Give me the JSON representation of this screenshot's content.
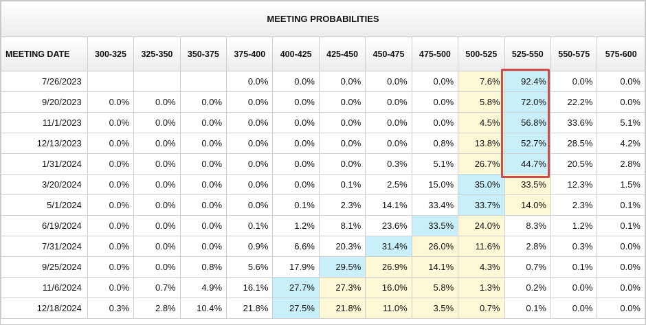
{
  "title": "MEETING PROBABILITIES",
  "highlight_color": "#cc4b4b",
  "cell_colors": {
    "yellow": "#fdf8d6",
    "blue": "#c9f0fa"
  },
  "chart_data": {
    "type": "table",
    "title": "MEETING PROBABILITIES",
    "columns": [
      "MEETING DATE",
      "300-325",
      "325-350",
      "350-375",
      "375-400",
      "400-425",
      "425-450",
      "450-475",
      "475-500",
      "500-525",
      "525-550",
      "550-575",
      "575-600"
    ],
    "rows": [
      {
        "date": "7/26/2023",
        "values": [
          "",
          "",
          "",
          "0.0%",
          "0.0%",
          "0.0%",
          "0.0%",
          "0.0%",
          "7.6%",
          "92.4%",
          "0.0%",
          "0.0%"
        ],
        "colors": [
          "",
          "",
          "",
          "",
          "",
          "",
          "",
          "",
          "yellow",
          "blue",
          "",
          ""
        ]
      },
      {
        "date": "9/20/2023",
        "values": [
          "0.0%",
          "0.0%",
          "0.0%",
          "0.0%",
          "0.0%",
          "0.0%",
          "0.0%",
          "0.0%",
          "5.8%",
          "72.0%",
          "22.2%",
          "0.0%"
        ],
        "colors": [
          "",
          "",
          "",
          "",
          "",
          "",
          "",
          "",
          "yellow",
          "blue",
          "",
          ""
        ]
      },
      {
        "date": "11/1/2023",
        "values": [
          "0.0%",
          "0.0%",
          "0.0%",
          "0.0%",
          "0.0%",
          "0.0%",
          "0.0%",
          "0.0%",
          "4.5%",
          "56.8%",
          "33.6%",
          "5.1%"
        ],
        "colors": [
          "",
          "",
          "",
          "",
          "",
          "",
          "",
          "",
          "yellow",
          "blue",
          "",
          ""
        ]
      },
      {
        "date": "12/13/2023",
        "values": [
          "0.0%",
          "0.0%",
          "0.0%",
          "0.0%",
          "0.0%",
          "0.0%",
          "0.0%",
          "0.8%",
          "13.8%",
          "52.7%",
          "28.5%",
          "4.2%"
        ],
        "colors": [
          "",
          "",
          "",
          "",
          "",
          "",
          "",
          "",
          "yellow",
          "blue",
          "",
          ""
        ]
      },
      {
        "date": "1/31/2024",
        "values": [
          "0.0%",
          "0.0%",
          "0.0%",
          "0.0%",
          "0.0%",
          "0.0%",
          "0.3%",
          "5.1%",
          "26.7%",
          "44.7%",
          "20.5%",
          "2.8%"
        ],
        "colors": [
          "",
          "",
          "",
          "",
          "",
          "",
          "",
          "",
          "yellow",
          "blue",
          "",
          ""
        ]
      },
      {
        "date": "3/20/2024",
        "values": [
          "0.0%",
          "0.0%",
          "0.0%",
          "0.0%",
          "0.0%",
          "0.1%",
          "2.5%",
          "15.0%",
          "35.0%",
          "33.5%",
          "12.3%",
          "1.5%"
        ],
        "colors": [
          "",
          "",
          "",
          "",
          "",
          "",
          "",
          "",
          "blue",
          "yellow",
          "",
          ""
        ]
      },
      {
        "date": "5/1/2024",
        "values": [
          "0.0%",
          "0.0%",
          "0.0%",
          "0.0%",
          "0.1%",
          "2.3%",
          "14.1%",
          "33.4%",
          "33.7%",
          "14.0%",
          "2.3%",
          "0.1%"
        ],
        "colors": [
          "",
          "",
          "",
          "",
          "",
          "",
          "",
          "",
          "blue",
          "yellow",
          "",
          ""
        ]
      },
      {
        "date": "6/19/2024",
        "values": [
          "0.0%",
          "0.0%",
          "0.0%",
          "0.1%",
          "1.2%",
          "8.1%",
          "23.6%",
          "33.5%",
          "24.0%",
          "8.3%",
          "1.2%",
          "0.1%"
        ],
        "colors": [
          "",
          "",
          "",
          "",
          "",
          "",
          "",
          "blue",
          "yellow",
          "",
          "",
          ""
        ]
      },
      {
        "date": "7/31/2024",
        "values": [
          "0.0%",
          "0.0%",
          "0.0%",
          "0.9%",
          "6.6%",
          "20.3%",
          "31.4%",
          "26.0%",
          "11.6%",
          "2.8%",
          "0.3%",
          "0.0%"
        ],
        "colors": [
          "",
          "",
          "",
          "",
          "",
          "",
          "blue",
          "yellow",
          "yellow",
          "",
          "",
          ""
        ]
      },
      {
        "date": "9/25/2024",
        "values": [
          "0.0%",
          "0.0%",
          "0.8%",
          "5.6%",
          "17.9%",
          "29.5%",
          "26.9%",
          "14.1%",
          "4.3%",
          "0.7%",
          "0.1%",
          "0.0%"
        ],
        "colors": [
          "",
          "",
          "",
          "",
          "",
          "blue",
          "yellow",
          "yellow",
          "yellow",
          "",
          "",
          ""
        ]
      },
      {
        "date": "11/6/2024",
        "values": [
          "0.0%",
          "0.7%",
          "4.9%",
          "16.1%",
          "27.7%",
          "27.3%",
          "16.0%",
          "5.8%",
          "1.3%",
          "0.2%",
          "0.0%",
          "0.0%"
        ],
        "colors": [
          "",
          "",
          "",
          "",
          "blue",
          "yellow",
          "yellow",
          "yellow",
          "yellow",
          "",
          "",
          ""
        ]
      },
      {
        "date": "12/18/2024",
        "values": [
          "0.3%",
          "2.8%",
          "10.4%",
          "21.8%",
          "27.5%",
          "21.8%",
          "11.0%",
          "3.5%",
          "0.7%",
          "0.1%",
          "0.0%",
          "0.0%"
        ],
        "colors": [
          "",
          "",
          "",
          "",
          "blue",
          "yellow",
          "yellow",
          "yellow",
          "yellow",
          "",
          "",
          ""
        ]
      }
    ],
    "highlighted_cells": {
      "column": "525-550",
      "rows": [
        "7/26/2023",
        "9/20/2023",
        "11/1/2023",
        "12/13/2023",
        "1/31/2024"
      ]
    }
  }
}
